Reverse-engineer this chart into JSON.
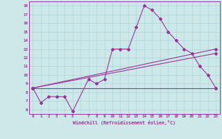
{
  "xlabel": "Windchill (Refroidissement éolien,°C)",
  "background_color": "#cce8e8",
  "line_color": "#993399",
  "xlim": [
    -0.5,
    23.5
  ],
  "ylim": [
    5.5,
    18.5
  ],
  "xticks": [
    0,
    1,
    2,
    3,
    4,
    5,
    6,
    7,
    8,
    9,
    10,
    11,
    12,
    13,
    14,
    15,
    16,
    17,
    18,
    19,
    20,
    21,
    22,
    23
  ],
  "xtick_labels": [
    "0",
    "1",
    "2",
    "3",
    "4",
    "5",
    "",
    "7",
    "8",
    "9",
    "10",
    "11",
    "12",
    "13",
    "14",
    "15",
    "16",
    "17",
    "18",
    "19",
    "20",
    "21",
    "22",
    "23"
  ],
  "yticks": [
    6,
    7,
    8,
    9,
    10,
    11,
    12,
    13,
    14,
    15,
    16,
    17,
    18
  ],
  "ytick_labels": [
    "6",
    "7",
    "8",
    "9",
    "10",
    "11",
    "12",
    "13",
    "14",
    "15",
    "16",
    "17",
    "18"
  ],
  "grid_color": "#b0d4d4",
  "series_main": {
    "x": [
      0,
      1,
      2,
      3,
      4,
      5,
      7,
      8,
      9,
      10,
      11,
      12,
      13,
      14,
      15,
      16,
      17,
      18,
      19,
      20,
      21,
      22,
      23
    ],
    "y": [
      8.5,
      6.8,
      7.5,
      7.5,
      7.5,
      5.8,
      9.5,
      9.0,
      9.5,
      13.0,
      13.0,
      13.0,
      15.5,
      18.0,
      17.5,
      16.5,
      15.0,
      14.0,
      13.0,
      12.5,
      11.0,
      10.0,
      8.5
    ]
  },
  "series_lines": [
    {
      "x": [
        0,
        23
      ],
      "y": [
        8.5,
        8.5
      ]
    },
    {
      "x": [
        0,
        23
      ],
      "y": [
        8.5,
        12.5
      ]
    },
    {
      "x": [
        0,
        23
      ],
      "y": [
        8.5,
        13.0
      ]
    }
  ]
}
